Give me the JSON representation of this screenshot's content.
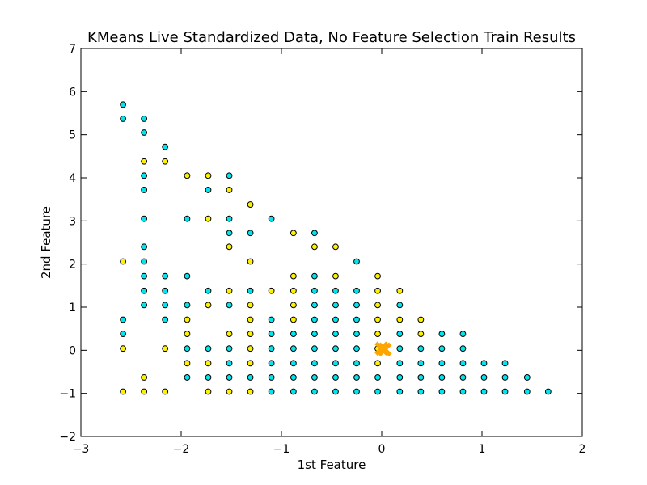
{
  "chart_data": {
    "type": "scatter",
    "title": "KMeans Live Standardized Data, No Feature Selection Train Results",
    "xlabel": "1st Feature",
    "ylabel": "2nd Feature",
    "xlim": [
      -3,
      2
    ],
    "ylim": [
      -2,
      7
    ],
    "xticks": [
      -3,
      -2,
      -1,
      0,
      1,
      2
    ],
    "yticks": [
      -2,
      -1,
      0,
      1,
      2,
      3,
      4,
      5,
      6,
      7
    ],
    "grid": false,
    "legend": "none",
    "colors": {
      "cyan": "#00E5EE",
      "yellow": "#FFF200",
      "centroid": "#FFA500",
      "edge": "#000000"
    },
    "series": [
      {
        "color_key": "cyan",
        "points": [
          [
            -2.58,
            5.7
          ],
          [
            -2.58,
            5.37
          ],
          [
            -2.58,
            0.71
          ],
          [
            -2.58,
            0.38
          ],
          [
            -2.37,
            5.37
          ],
          [
            -2.37,
            5.05
          ],
          [
            -2.37,
            4.05
          ],
          [
            -2.37,
            3.72
          ],
          [
            -2.37,
            3.05
          ],
          [
            -2.37,
            2.4
          ],
          [
            -2.37,
            2.06
          ],
          [
            -2.37,
            1.72
          ],
          [
            -2.37,
            1.38
          ],
          [
            -2.37,
            1.05
          ],
          [
            -2.16,
            4.72
          ],
          [
            -2.16,
            1.72
          ],
          [
            -2.16,
            1.38
          ],
          [
            -2.16,
            1.05
          ],
          [
            -2.16,
            0.71
          ],
          [
            -1.94,
            3.05
          ],
          [
            -1.94,
            1.72
          ],
          [
            -1.94,
            1.05
          ],
          [
            -1.94,
            0.04
          ],
          [
            -1.94,
            -0.63
          ],
          [
            -1.73,
            3.72
          ],
          [
            -1.73,
            1.38
          ],
          [
            -1.73,
            0.04
          ],
          [
            -1.73,
            -0.63
          ],
          [
            -1.52,
            4.05
          ],
          [
            -1.52,
            3.05
          ],
          [
            -1.52,
            2.72
          ],
          [
            -1.52,
            1.05
          ],
          [
            -1.52,
            0.04
          ],
          [
            -1.52,
            -0.3
          ],
          [
            -1.52,
            -0.63
          ],
          [
            -1.31,
            2.72
          ],
          [
            -1.31,
            1.38
          ],
          [
            -1.31,
            -0.63
          ],
          [
            -1.1,
            3.05
          ],
          [
            -1.1,
            0.71
          ],
          [
            -1.1,
            0.38
          ],
          [
            -1.1,
            0.04
          ],
          [
            -1.1,
            -0.3
          ],
          [
            -1.1,
            -0.63
          ],
          [
            -1.1,
            -0.96
          ],
          [
            -0.88,
            0.38
          ],
          [
            -0.88,
            0.04
          ],
          [
            -0.88,
            -0.3
          ],
          [
            -0.88,
            -0.63
          ],
          [
            -0.88,
            -0.96
          ],
          [
            -0.67,
            2.72
          ],
          [
            -0.67,
            1.72
          ],
          [
            -0.67,
            1.38
          ],
          [
            -0.67,
            1.05
          ],
          [
            -0.67,
            0.71
          ],
          [
            -0.67,
            0.38
          ],
          [
            -0.67,
            0.04
          ],
          [
            -0.67,
            -0.3
          ],
          [
            -0.67,
            -0.63
          ],
          [
            -0.67,
            -0.96
          ],
          [
            -0.46,
            1.38
          ],
          [
            -0.46,
            1.05
          ],
          [
            -0.46,
            0.71
          ],
          [
            -0.46,
            0.38
          ],
          [
            -0.46,
            0.04
          ],
          [
            -0.46,
            -0.3
          ],
          [
            -0.46,
            -0.63
          ],
          [
            -0.46,
            -0.96
          ],
          [
            -0.25,
            2.06
          ],
          [
            -0.25,
            1.38
          ],
          [
            -0.25,
            1.05
          ],
          [
            -0.25,
            0.71
          ],
          [
            -0.25,
            0.38
          ],
          [
            -0.25,
            0.04
          ],
          [
            -0.25,
            -0.3
          ],
          [
            -0.25,
            -0.63
          ],
          [
            -0.25,
            -0.96
          ],
          [
            -0.04,
            -0.63
          ],
          [
            -0.04,
            -0.96
          ],
          [
            0.18,
            1.05
          ],
          [
            0.18,
            0.38
          ],
          [
            0.18,
            0.04
          ],
          [
            0.18,
            -0.3
          ],
          [
            0.18,
            -0.63
          ],
          [
            0.18,
            -0.96
          ],
          [
            0.39,
            0.04
          ],
          [
            0.39,
            -0.3
          ],
          [
            0.39,
            -0.63
          ],
          [
            0.39,
            -0.96
          ],
          [
            0.6,
            0.38
          ],
          [
            0.6,
            0.04
          ],
          [
            0.6,
            -0.3
          ],
          [
            0.6,
            -0.63
          ],
          [
            0.6,
            -0.96
          ],
          [
            0.81,
            0.38
          ],
          [
            0.81,
            0.04
          ],
          [
            0.81,
            -0.3
          ],
          [
            0.81,
            -0.63
          ],
          [
            0.81,
            -0.96
          ],
          [
            1.02,
            -0.3
          ],
          [
            1.02,
            -0.63
          ],
          [
            1.02,
            -0.96
          ],
          [
            1.23,
            -0.3
          ],
          [
            1.23,
            -0.63
          ],
          [
            1.23,
            -0.96
          ],
          [
            1.45,
            -0.63
          ],
          [
            1.45,
            -0.96
          ],
          [
            1.66,
            -0.96
          ]
        ]
      },
      {
        "color_key": "yellow",
        "points": [
          [
            -2.58,
            2.06
          ],
          [
            -2.58,
            0.04
          ],
          [
            -2.58,
            -0.96
          ],
          [
            -2.37,
            4.38
          ],
          [
            -2.37,
            -0.63
          ],
          [
            -2.37,
            -0.96
          ],
          [
            -2.16,
            4.38
          ],
          [
            -2.16,
            0.04
          ],
          [
            -2.16,
            -0.96
          ],
          [
            -1.94,
            4.05
          ],
          [
            -1.94,
            0.71
          ],
          [
            -1.94,
            0.38
          ],
          [
            -1.94,
            -0.3
          ],
          [
            -1.73,
            4.05
          ],
          [
            -1.73,
            3.05
          ],
          [
            -1.73,
            1.05
          ],
          [
            -1.73,
            -0.3
          ],
          [
            -1.73,
            -0.96
          ],
          [
            -1.52,
            3.72
          ],
          [
            -1.52,
            2.4
          ],
          [
            -1.52,
            1.38
          ],
          [
            -1.52,
            0.38
          ],
          [
            -1.52,
            -0.96
          ],
          [
            -1.31,
            3.38
          ],
          [
            -1.31,
            2.06
          ],
          [
            -1.31,
            1.05
          ],
          [
            -1.31,
            0.71
          ],
          [
            -1.31,
            0.38
          ],
          [
            -1.31,
            0.04
          ],
          [
            -1.31,
            -0.3
          ],
          [
            -1.31,
            -0.96
          ],
          [
            -1.1,
            1.38
          ],
          [
            -0.88,
            2.72
          ],
          [
            -0.88,
            1.72
          ],
          [
            -0.88,
            1.38
          ],
          [
            -0.88,
            1.05
          ],
          [
            -0.88,
            0.71
          ],
          [
            -0.67,
            2.4
          ],
          [
            -0.46,
            2.4
          ],
          [
            -0.46,
            1.72
          ],
          [
            -0.04,
            1.72
          ],
          [
            -0.04,
            1.38
          ],
          [
            -0.04,
            1.05
          ],
          [
            -0.04,
            0.71
          ],
          [
            -0.04,
            0.38
          ],
          [
            -0.04,
            0.04
          ],
          [
            -0.04,
            -0.3
          ],
          [
            0.18,
            1.38
          ],
          [
            0.18,
            0.71
          ],
          [
            0.39,
            0.71
          ],
          [
            0.39,
            0.38
          ]
        ]
      }
    ],
    "centroids": [
      {
        "color_key": "centroid",
        "marker": "x",
        "points": [
          [
            0.0,
            0.04
          ],
          [
            0.03,
            0.02
          ]
        ]
      }
    ]
  }
}
